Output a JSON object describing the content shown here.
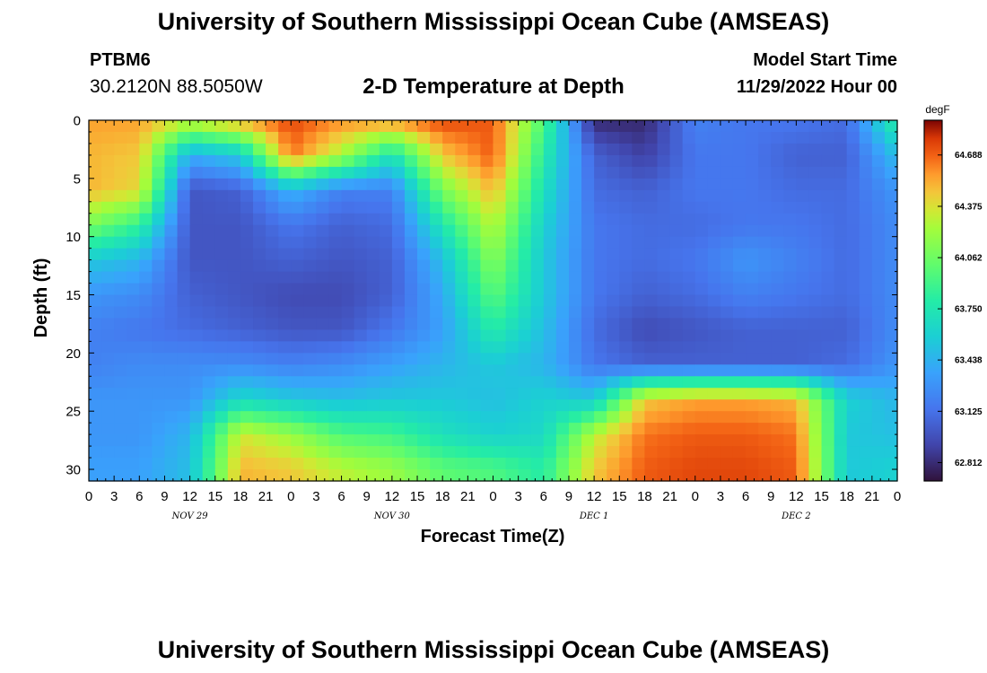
{
  "page": {
    "title": "University of Southern Mississippi Ocean Cube (AMSEAS)",
    "title_repeat": "University of Southern Mississippi Ocean Cube (AMSEAS)",
    "station": "PTBM6",
    "location": "30.2120N  88.5050W",
    "plot_title": "2-D Temperature at Depth",
    "model_start_label": "Model Start Time",
    "model_start_value": "11/29/2022 Hour 00"
  },
  "chart_data": {
    "type": "heatmap",
    "title": "2-D Temperature at Depth",
    "xlabel": "Forecast Time(Z)",
    "ylabel": "Depth (ft)",
    "x_tick_labels": [
      "0",
      "3",
      "6",
      "9",
      "12",
      "15",
      "18",
      "21",
      "0",
      "3",
      "6",
      "9",
      "12",
      "15",
      "18",
      "21",
      "0",
      "3",
      "6",
      "9",
      "12",
      "15",
      "18",
      "21",
      "0",
      "3",
      "6",
      "9",
      "12",
      "15",
      "18",
      "21",
      "0"
    ],
    "x_range_hours": [
      0,
      96
    ],
    "day_labels": [
      {
        "label": "NOV 29",
        "hour": 12
      },
      {
        "label": "NOV 30",
        "hour": 36
      },
      {
        "label": "DEC 1",
        "hour": 60
      },
      {
        "label": "DEC 2",
        "hour": 84
      }
    ],
    "y_ticks": [
      0,
      5,
      10,
      15,
      20,
      25,
      30
    ],
    "ylim": [
      0,
      31
    ],
    "colorbar": {
      "unit": "degF",
      "ticks": [
        "64.688",
        "64.375",
        "64.062",
        "63.750",
        "63.438",
        "63.125",
        "62.812"
      ],
      "tick_values": [
        64.688,
        64.375,
        64.062,
        63.75,
        63.438,
        63.125,
        62.812
      ],
      "vmin": 62.7,
      "vmax": 64.9
    },
    "grid_hours": [
      0,
      6,
      12,
      18,
      24,
      30,
      36,
      42,
      48,
      54,
      60,
      66,
      72,
      78,
      84,
      90,
      96
    ],
    "grid_depths_ft": [
      0,
      3,
      6,
      9,
      12,
      15,
      18,
      21,
      24,
      27,
      30
    ],
    "temperature_degF": [
      [
        64.55,
        64.55,
        64.35,
        64.55,
        64.75,
        64.6,
        64.6,
        64.75,
        64.7,
        63.95,
        62.8,
        62.8,
        63.2,
        63.15,
        63.15,
        63.1,
        63.85
      ],
      [
        64.5,
        64.45,
        63.4,
        63.55,
        64.65,
        64.25,
        63.7,
        64.45,
        64.7,
        63.8,
        63.05,
        62.9,
        63.15,
        63.15,
        63.05,
        63.05,
        63.5
      ],
      [
        64.5,
        64.4,
        63.0,
        63.05,
        63.45,
        63.2,
        63.2,
        64.1,
        64.5,
        63.7,
        63.1,
        63.05,
        63.15,
        63.15,
        63.1,
        63.1,
        63.3
      ],
      [
        64.1,
        63.85,
        63.0,
        63.0,
        63.15,
        63.05,
        63.1,
        63.75,
        64.3,
        63.6,
        63.15,
        63.1,
        63.1,
        63.15,
        63.15,
        63.1,
        63.25
      ],
      [
        63.55,
        63.45,
        63.0,
        63.0,
        63.05,
        63.0,
        63.05,
        63.5,
        64.15,
        63.55,
        63.15,
        63.1,
        63.15,
        63.3,
        63.2,
        63.1,
        63.25
      ],
      [
        63.3,
        63.25,
        63.05,
        63.0,
        62.95,
        62.95,
        63.05,
        63.4,
        64.0,
        63.55,
        63.15,
        63.05,
        63.1,
        63.2,
        63.15,
        63.1,
        63.25
      ],
      [
        63.2,
        63.15,
        63.1,
        63.05,
        63.0,
        63.0,
        63.15,
        63.35,
        63.8,
        63.5,
        63.1,
        62.95,
        63.0,
        63.05,
        63.05,
        63.05,
        63.25
      ],
      [
        63.2,
        63.25,
        63.25,
        63.25,
        63.2,
        63.25,
        63.35,
        63.45,
        63.55,
        63.45,
        63.15,
        63.05,
        63.05,
        63.05,
        63.05,
        63.1,
        63.3
      ],
      [
        63.3,
        63.3,
        63.3,
        63.65,
        63.55,
        63.5,
        63.55,
        63.55,
        63.5,
        63.6,
        63.55,
        64.45,
        64.55,
        64.55,
        64.5,
        63.6,
        63.45
      ],
      [
        63.3,
        63.3,
        63.45,
        64.35,
        64.2,
        63.95,
        63.9,
        63.7,
        63.6,
        63.65,
        64.3,
        64.65,
        64.7,
        64.7,
        64.65,
        63.55,
        63.5
      ],
      [
        63.35,
        63.35,
        63.5,
        64.5,
        64.45,
        64.3,
        64.2,
        64.0,
        63.95,
        63.8,
        64.45,
        64.7,
        64.75,
        64.75,
        64.7,
        63.55,
        63.6
      ]
    ]
  }
}
